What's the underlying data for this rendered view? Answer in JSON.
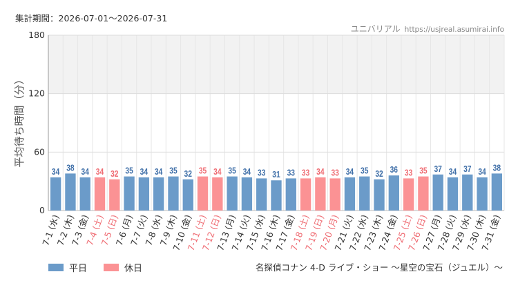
{
  "header": {
    "period": "集計期間：2026-07-01〜2026-07-31",
    "site_name": "ユニバリアル",
    "site_url": "https://usjreal.asumirai.info"
  },
  "legend": {
    "weekday_label": "平日",
    "holiday_label": "休日"
  },
  "footer": {
    "attraction": "名探偵コナン 4-D ライブ・ショー 〜星空の宝石（ジュエル）〜"
  },
  "colors": {
    "weekday": "#6b9bc9",
    "holiday": "#fb9294",
    "weekday_label": "#3f6fa8",
    "holiday_label": "#ef6c73"
  },
  "chart_data": {
    "type": "bar",
    "ylabel": "平均待ち時間（分）",
    "ylim": [
      0,
      180
    ],
    "yticks": [
      0,
      60,
      120,
      180
    ],
    "grid": true,
    "band": [
      120,
      180
    ],
    "legend_position": "bottom-left",
    "categories": [
      "7-1 (水)",
      "7-2 (木)",
      "7-3 (金)",
      "7-4 (土)",
      "7-5 (日)",
      "7-6 (月)",
      "7-7 (火)",
      "7-8 (水)",
      "7-9 (木)",
      "7-10 (金)",
      "7-11 (土)",
      "7-12 (日)",
      "7-13 (月)",
      "7-14 (火)",
      "7-15 (水)",
      "7-16 (木)",
      "7-17 (金)",
      "7-18 (土)",
      "7-19 (日)",
      "7-20 (月)",
      "7-21 (火)",
      "7-22 (水)",
      "7-23 (木)",
      "7-24 (金)",
      "7-25 (土)",
      "7-26 (日)",
      "7-27 (月)",
      "7-28 (火)",
      "7-29 (水)",
      "7-30 (木)",
      "7-31 (金)"
    ],
    "values": [
      34,
      38,
      34,
      34,
      32,
      35,
      34,
      34,
      35,
      32,
      35,
      34,
      35,
      34,
      33,
      31,
      33,
      33,
      34,
      33,
      34,
      35,
      32,
      36,
      33,
      35,
      37,
      34,
      37,
      34,
      38
    ],
    "day_type": [
      "weekday",
      "weekday",
      "weekday",
      "holiday",
      "holiday",
      "weekday",
      "weekday",
      "weekday",
      "weekday",
      "weekday",
      "holiday",
      "holiday",
      "weekday",
      "weekday",
      "weekday",
      "weekday",
      "weekday",
      "holiday",
      "holiday",
      "holiday",
      "weekday",
      "weekday",
      "weekday",
      "weekday",
      "holiday",
      "holiday",
      "weekday",
      "weekday",
      "weekday",
      "weekday",
      "weekday"
    ]
  }
}
